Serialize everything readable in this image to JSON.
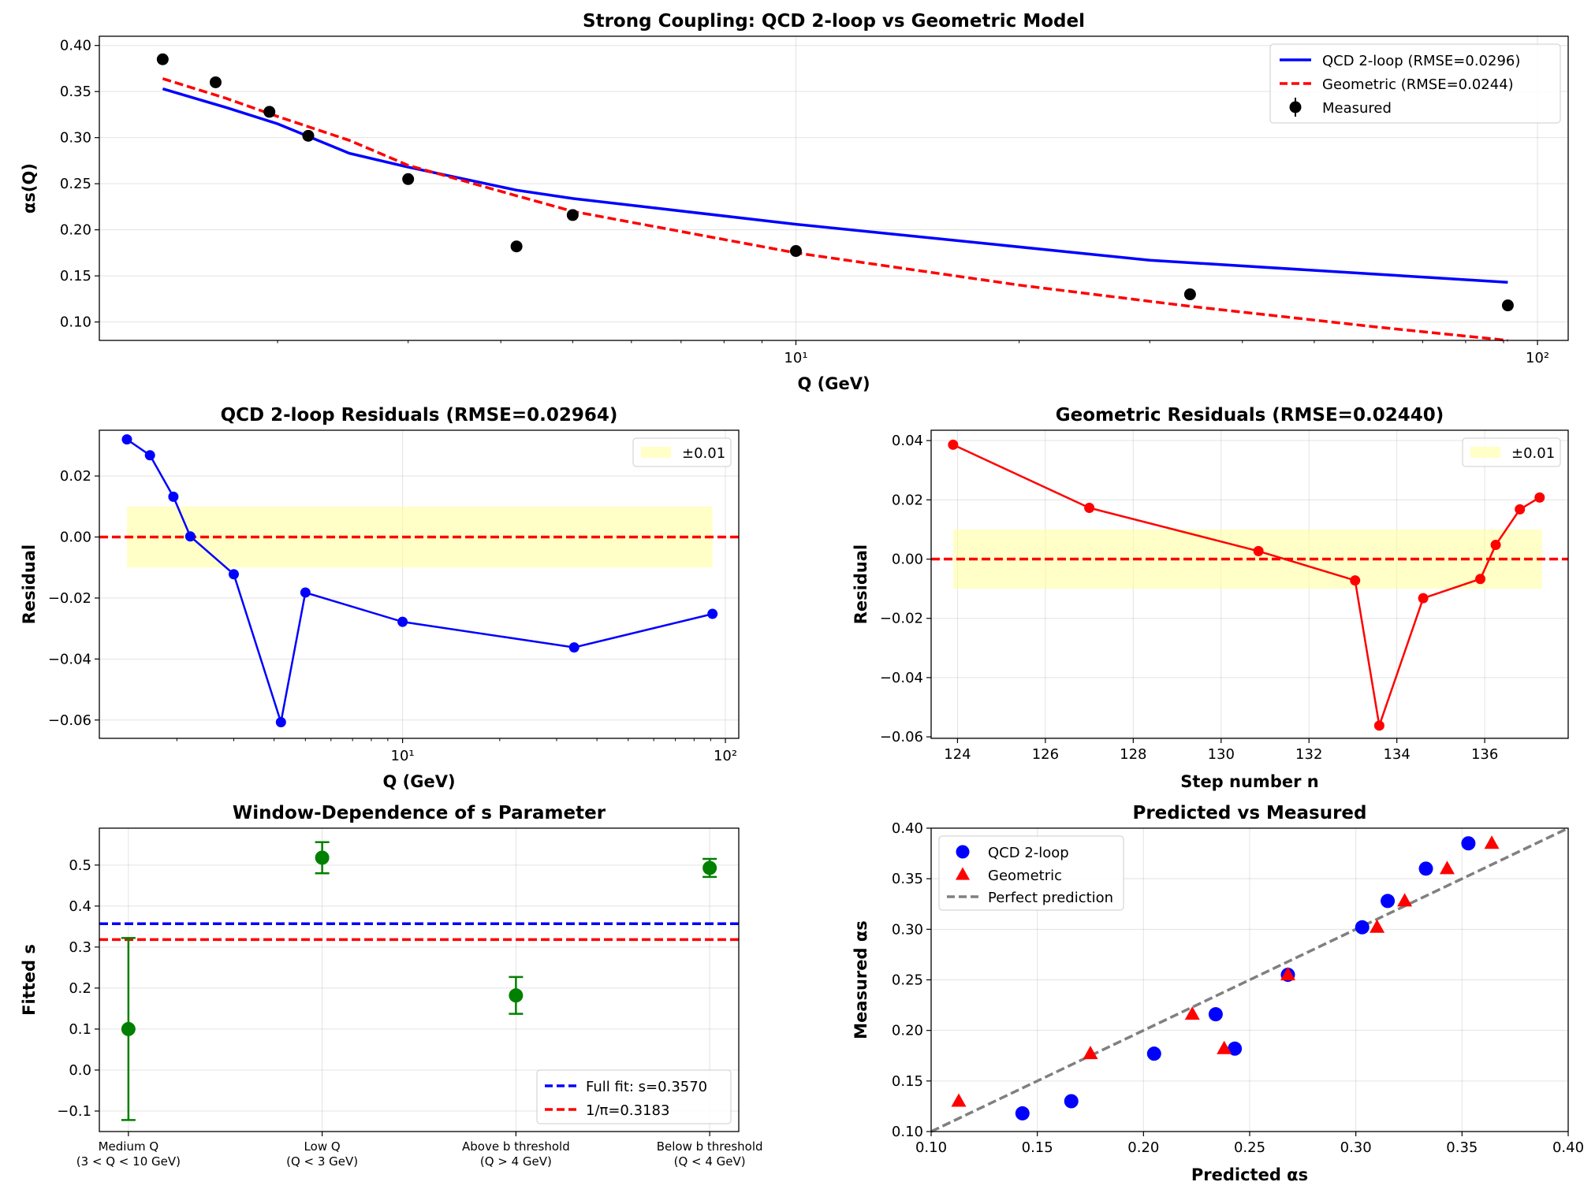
{
  "chart_data": [
    {
      "id": "p1",
      "type": "line",
      "title": "Strong Coupling: QCD 2-loop vs Geometric Model",
      "xlabel": "Q (GeV)",
      "ylabel": "αs(Q)",
      "xscale": "log",
      "xlim": [
        1.15,
        110
      ],
      "ylim": [
        0.08,
        0.41
      ],
      "yticks": [
        0.1,
        0.15,
        0.2,
        0.25,
        0.3,
        0.35,
        0.4
      ],
      "ytick_labels": [
        "0.10",
        "0.15",
        "0.20",
        "0.25",
        "0.30",
        "0.35",
        "0.40"
      ],
      "xticks": [
        10,
        100
      ],
      "xtick_labels": [
        "10¹",
        "10²"
      ],
      "grid": true,
      "legend": "top-right",
      "series": [
        {
          "name": "QCD 2-loop (RMSE=0.0296)",
          "kind": "line",
          "color": "#0000ff",
          "dash": "solid",
          "x": [
            1.4,
            1.7,
            2.0,
            2.5,
            3.0,
            4.2,
            5.0,
            10,
            30,
            91.2
          ],
          "y": [
            0.353,
            0.333,
            0.315,
            0.283,
            0.268,
            0.243,
            0.234,
            0.206,
            0.167,
            0.143
          ]
        },
        {
          "name": "Geometric (RMSE=0.0244)",
          "kind": "line",
          "color": "#ff0000",
          "dash": "dashed",
          "x": [
            1.4,
            1.7,
            2.0,
            2.5,
            3.0,
            4.2,
            5.0,
            10,
            20,
            34,
            60,
            91.2
          ],
          "y": [
            0.364,
            0.343,
            0.323,
            0.297,
            0.27,
            0.237,
            0.22,
            0.175,
            0.14,
            0.117,
            0.095,
            0.08
          ]
        },
        {
          "name": "Measured",
          "kind": "errorbar",
          "color": "#000000",
          "x": [
            1.4,
            1.65,
            1.95,
            2.2,
            3.0,
            4.2,
            5.0,
            10,
            34,
            91.2
          ],
          "y": [
            0.385,
            0.36,
            0.328,
            0.302,
            0.255,
            0.182,
            0.216,
            0.177,
            0.13,
            0.118
          ],
          "err": [
            0.004,
            0.004,
            0.004,
            0.004,
            0.004,
            0.004,
            0.004,
            0.004,
            0.004,
            0.004
          ]
        }
      ]
    },
    {
      "id": "p2",
      "type": "line",
      "title": "QCD 2-loop Residuals (RMSE=0.02964)",
      "xlabel": "Q (GeV)",
      "ylabel": "Residual",
      "xscale": "log",
      "xlim": [
        1.15,
        110
      ],
      "ylim": [
        -0.066,
        0.035
      ],
      "yticks": [
        -0.06,
        -0.04,
        -0.02,
        0.0,
        0.02
      ],
      "ytick_labels": [
        "−0.06",
        "−0.04",
        "−0.02",
        "0.00",
        "0.02"
      ],
      "xticks": [
        10,
        100
      ],
      "xtick_labels": [
        "10¹",
        "10²"
      ],
      "grid": true,
      "legend": "top-right",
      "band": {
        "name": "±0.01",
        "low": -0.01,
        "high": 0.01,
        "x0": 1.4,
        "x1": 91.2,
        "color": "#ffff99"
      },
      "hline": {
        "y": 0.0,
        "color": "#ff0000",
        "dash": "dashed"
      },
      "series": [
        {
          "name": "",
          "kind": "line-marker",
          "color": "#0000ff",
          "x": [
            1.4,
            1.65,
            1.95,
            2.2,
            3.0,
            4.2,
            5.0,
            10,
            34,
            91.2
          ],
          "y": [
            0.032,
            0.0268,
            0.0132,
            0.0002,
            -0.0122,
            -0.0607,
            -0.0182,
            -0.0278,
            -0.0362,
            -0.0252
          ]
        }
      ]
    },
    {
      "id": "p3",
      "type": "line",
      "title": "Geometric Residuals (RMSE=0.02440)",
      "xlabel": "Step number n",
      "ylabel": "Residual",
      "xscale": "linear",
      "xlim": [
        123.4,
        137.9
      ],
      "ylim": [
        -0.0605,
        0.0435
      ],
      "yticks": [
        -0.06,
        -0.04,
        -0.02,
        0.0,
        0.02,
        0.04
      ],
      "ytick_labels": [
        "−0.06",
        "−0.04",
        "−0.02",
        "0.00",
        "0.02",
        "0.04"
      ],
      "xticks": [
        124,
        126,
        128,
        130,
        132,
        134,
        136
      ],
      "xtick_labels": [
        "124",
        "126",
        "128",
        "130",
        "132",
        "134",
        "136"
      ],
      "grid": true,
      "legend": "top-right",
      "band": {
        "name": "±0.01",
        "low": -0.01,
        "high": 0.01,
        "x0": 123.9,
        "x1": 137.3,
        "color": "#ffff99"
      },
      "hline": {
        "y": 0.0,
        "color": "#ff0000",
        "dash": "dashed"
      },
      "series": [
        {
          "name": "",
          "kind": "line-marker",
          "color": "#ff0000",
          "x": [
            123.9,
            127.0,
            130.85,
            133.05,
            133.6,
            134.6,
            135.9,
            136.25,
            136.8,
            137.25
          ],
          "y": [
            0.0386,
            0.0173,
            0.0027,
            -0.0072,
            -0.0562,
            -0.0132,
            -0.0067,
            0.0048,
            0.0168,
            0.0208
          ]
        }
      ]
    },
    {
      "id": "p4",
      "type": "scatter",
      "title": "Window-Dependence of s Parameter",
      "xlabel": "",
      "ylabel": "Fitted s",
      "xscale": "category",
      "ylim": [
        -0.15,
        0.59
      ],
      "yticks": [
        -0.1,
        0.0,
        0.1,
        0.2,
        0.3,
        0.4,
        0.5
      ],
      "ytick_labels": [
        "−0.1",
        "0.0",
        "0.1",
        "0.2",
        "0.3",
        "0.4",
        "0.5"
      ],
      "categories": [
        [
          "Medium Q",
          "(3 < Q < 10 GeV)"
        ],
        [
          "Low Q",
          "(Q < 3 GeV)"
        ],
        [
          "Above b threshold",
          "(Q > 4 GeV)"
        ],
        [
          "Below b threshold",
          "(Q < 4 GeV)"
        ]
      ],
      "grid": true,
      "legend": "bottom-right",
      "hlines": [
        {
          "name": "Full fit: s=0.3570",
          "y": 0.357,
          "color": "#0000ff",
          "dash": "dashed"
        },
        {
          "name": "1/π=0.3183",
          "y": 0.3183,
          "color": "#ff0000",
          "dash": "dashed"
        }
      ],
      "series": [
        {
          "name": "",
          "kind": "errorbar",
          "color": "#008000",
          "values": [
            0.1,
            0.518,
            0.182,
            0.493
          ],
          "err": [
            0.222,
            0.038,
            0.045,
            0.022
          ]
        }
      ]
    },
    {
      "id": "p5",
      "type": "scatter",
      "title": "Predicted vs Measured",
      "xlabel": "Predicted αs",
      "ylabel": "Measured αs",
      "xscale": "linear",
      "xlim": [
        0.1,
        0.4
      ],
      "ylim": [
        0.1,
        0.4
      ],
      "xticks": [
        0.1,
        0.15,
        0.2,
        0.25,
        0.3,
        0.35,
        0.4
      ],
      "xtick_labels": [
        "0.10",
        "0.15",
        "0.20",
        "0.25",
        "0.30",
        "0.35",
        "0.40"
      ],
      "yticks": [
        0.1,
        0.15,
        0.2,
        0.25,
        0.3,
        0.35,
        0.4
      ],
      "ytick_labels": [
        "0.10",
        "0.15",
        "0.20",
        "0.25",
        "0.30",
        "0.35",
        "0.40"
      ],
      "grid": true,
      "legend": "top-left",
      "series": [
        {
          "name": "QCD 2-loop",
          "kind": "circle",
          "color": "#0000ff",
          "x": [
            0.353,
            0.333,
            0.315,
            0.303,
            0.268,
            0.243,
            0.234,
            0.205,
            0.166,
            0.143
          ],
          "y": [
            0.385,
            0.36,
            0.328,
            0.302,
            0.255,
            0.182,
            0.216,
            0.177,
            0.13,
            0.118
          ]
        },
        {
          "name": "Geometric",
          "kind": "triangle",
          "color": "#ff0000",
          "x": [
            0.364,
            0.343,
            0.323,
            0.31,
            0.268,
            0.238,
            0.223,
            0.175,
            0.113
          ],
          "y": [
            0.385,
            0.36,
            0.328,
            0.302,
            0.255,
            0.182,
            0.216,
            0.177,
            0.13
          ]
        },
        {
          "name": "Perfect prediction",
          "kind": "line",
          "color": "#808080",
          "dash": "dashed",
          "x": [
            0.1,
            0.4
          ],
          "y": [
            0.1,
            0.4
          ]
        }
      ]
    }
  ]
}
